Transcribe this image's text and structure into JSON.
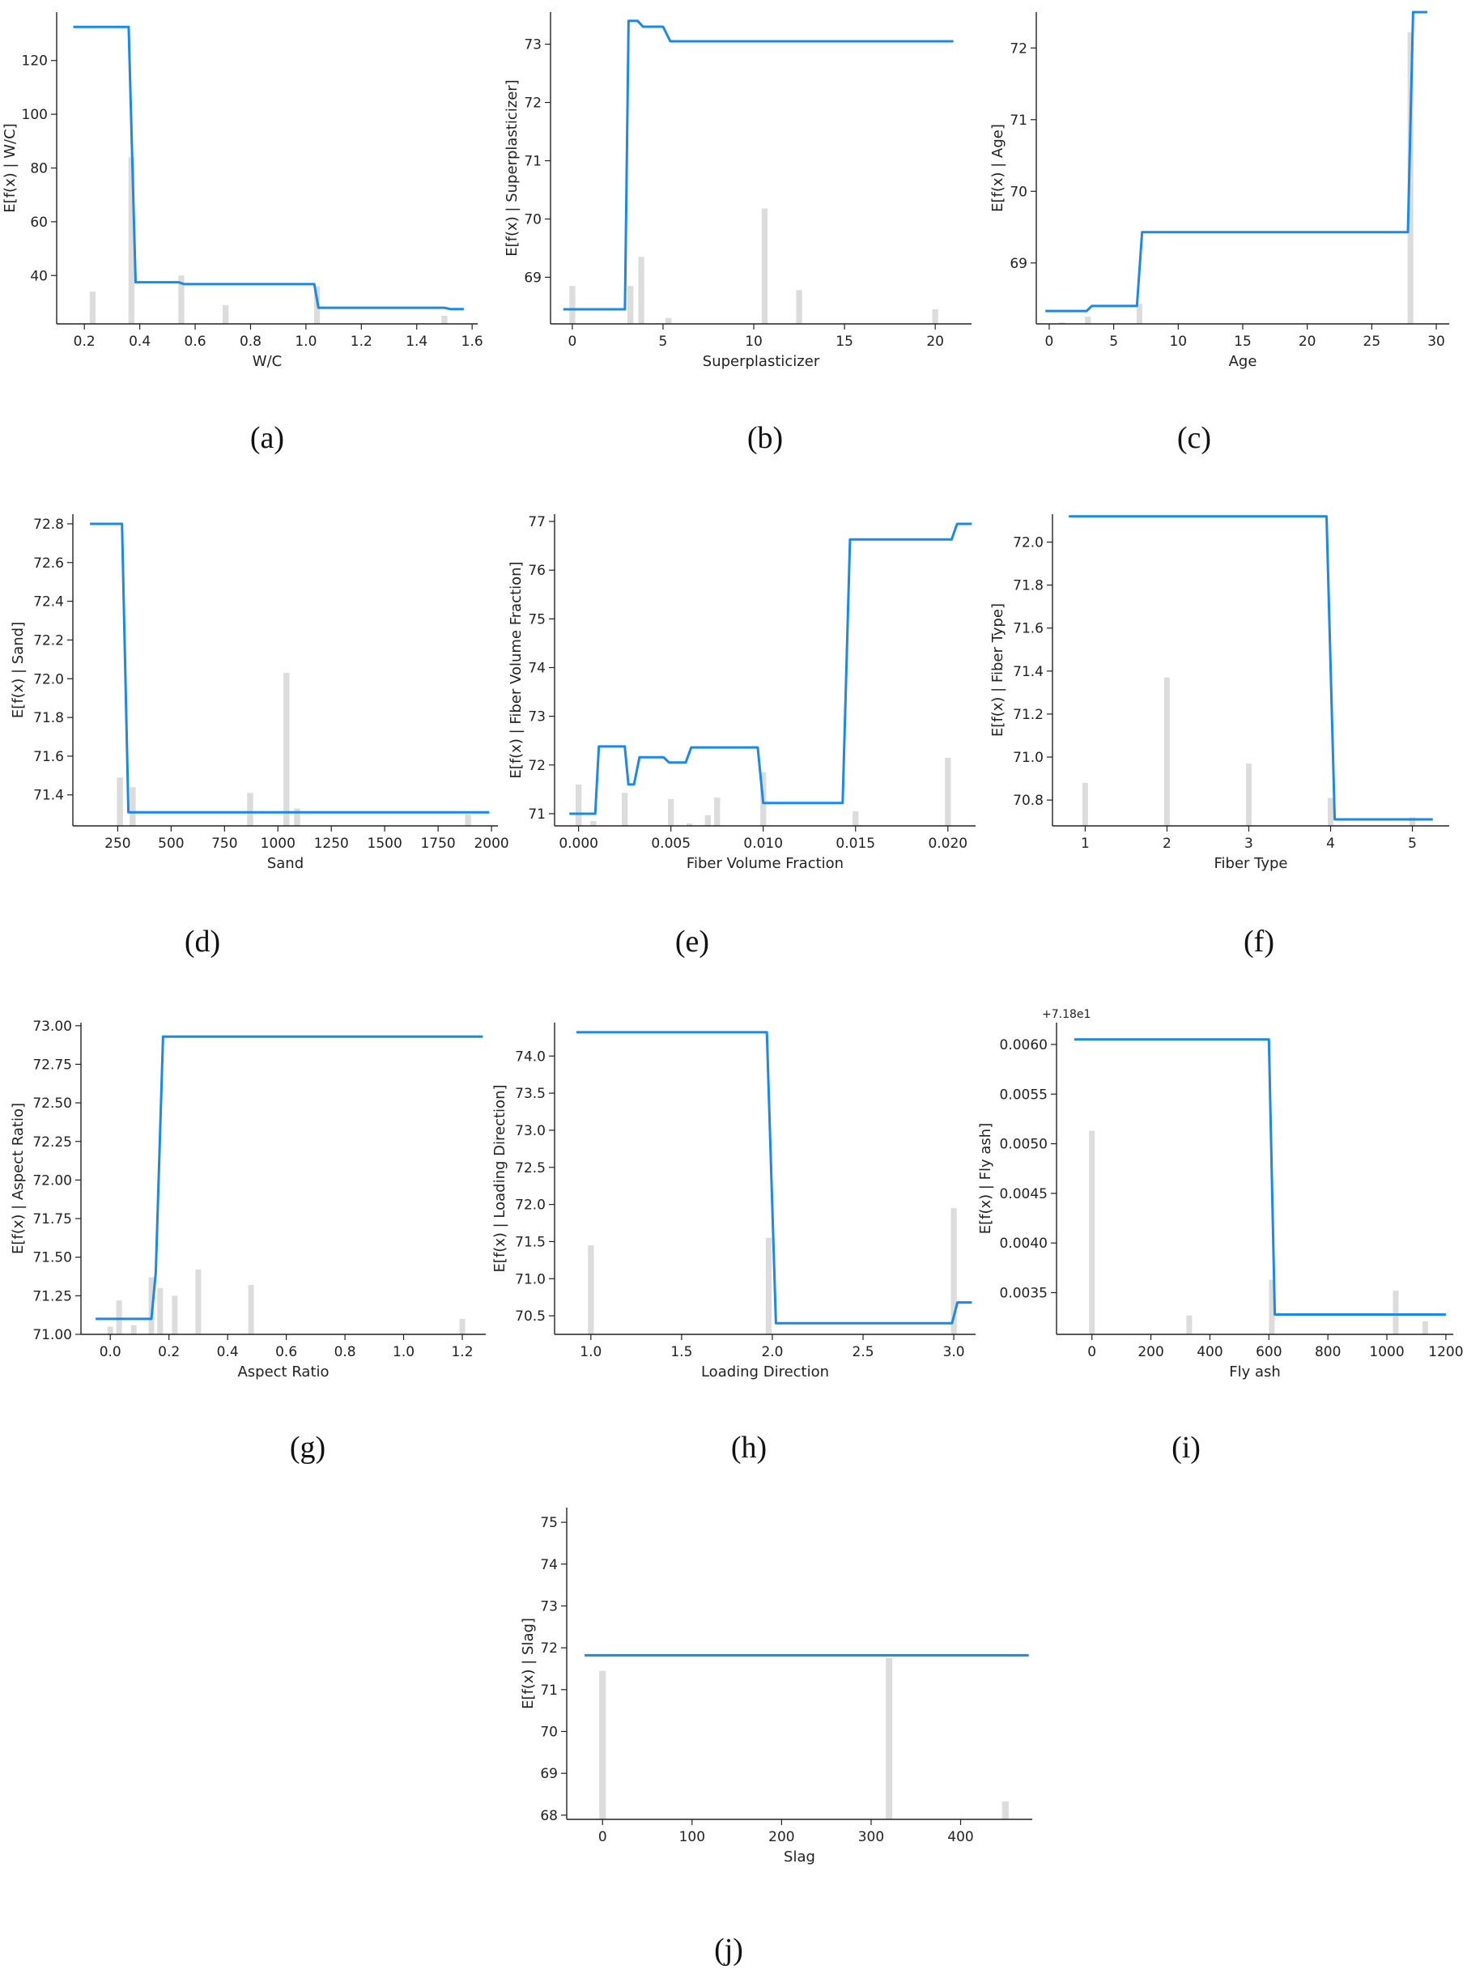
{
  "colors": {
    "line": "#1e88e5",
    "bars": "#dcdcdc",
    "axis": "#222222"
  },
  "chart_data": [
    {
      "type": "line",
      "caption": "(a)",
      "xlabel": "W/C",
      "ylabel": "E[f(x) | W/C]",
      "xlim": [
        0.1,
        1.62
      ],
      "ylim": [
        22,
        138
      ],
      "xticks": [
        0.2,
        0.4,
        0.6,
        0.8,
        1.0,
        1.2,
        1.4,
        1.6
      ],
      "xtick_labels": [
        "0.2",
        "0.4",
        "0.6",
        "0.8",
        "1.0",
        "1.2",
        "1.4",
        "1.6"
      ],
      "yticks": [
        40,
        60,
        80,
        100,
        120
      ],
      "ytick_labels": [
        "40",
        "60",
        "80",
        "100",
        "120"
      ],
      "offset_text": "",
      "line": {
        "x": [
          0.16,
          0.36,
          0.385,
          0.54,
          0.56,
          1.03,
          1.045,
          1.5,
          1.52,
          1.57
        ],
        "y": [
          132.5,
          132.5,
          37.5,
          37.5,
          36.8,
          36.8,
          28,
          28,
          27.5,
          27.5
        ]
      },
      "bars": {
        "x": [
          0.23,
          0.37,
          0.55,
          0.71,
          1.04,
          1.5
        ],
        "height": [
          34,
          84,
          40,
          29,
          36,
          25
        ]
      }
    },
    {
      "type": "line",
      "caption": "(b)",
      "xlabel": "Superplasticizer",
      "ylabel": "E[f(x) | Superplasticizer]",
      "xlim": [
        -1.2,
        22
      ],
      "ylim": [
        68.2,
        73.55
      ],
      "xticks": [
        0,
        5,
        10,
        15,
        20
      ],
      "xtick_labels": [
        "0",
        "5",
        "10",
        "15",
        "20"
      ],
      "yticks": [
        69,
        70,
        71,
        72,
        73
      ],
      "ytick_labels": [
        "69",
        "70",
        "71",
        "72",
        "73"
      ],
      "offset_text": "",
      "line": {
        "x": [
          -0.5,
          2.9,
          3.1,
          3.6,
          3.9,
          5.0,
          5.4,
          21
        ],
        "y": [
          68.45,
          68.45,
          73.4,
          73.4,
          73.3,
          73.3,
          73.05,
          73.05
        ]
      },
      "bars": {
        "x": [
          0,
          3.2,
          3.8,
          5.3,
          10.6,
          12.5,
          20
        ],
        "height": [
          68.85,
          68.85,
          69.35,
          68.3,
          70.18,
          68.78,
          68.45
        ]
      }
    },
    {
      "type": "line",
      "caption": "(c)",
      "xlabel": "Age",
      "ylabel": "E[f(x) | Age]",
      "xlim": [
        -1,
        31
      ],
      "ylim": [
        68.15,
        72.5
      ],
      "xticks": [
        0,
        5,
        10,
        15,
        20,
        25,
        30
      ],
      "xtick_labels": [
        "0",
        "5",
        "10",
        "15",
        "20",
        "25",
        "30"
      ],
      "yticks": [
        69,
        70,
        71,
        72
      ],
      "ytick_labels": [
        "69",
        "70",
        "71",
        "72"
      ],
      "offset_text": "",
      "line": {
        "x": [
          -0.3,
          2.9,
          3.3,
          6.8,
          7.2,
          27.8,
          28.2,
          29.3
        ],
        "y": [
          68.33,
          68.33,
          68.4,
          68.4,
          69.43,
          69.43,
          72.5,
          72.5
        ]
      },
      "bars": {
        "x": [
          1,
          3,
          7,
          28
        ],
        "height": [
          68.17,
          68.25,
          68.43,
          72.22
        ]
      }
    },
    {
      "type": "line",
      "caption": "(d)",
      "xlabel": "Sand",
      "ylabel": "E[f(x) | Sand]",
      "xlim": [
        40,
        2030
      ],
      "ylim": [
        71.24,
        72.85
      ],
      "xticks": [
        250,
        500,
        750,
        1000,
        1250,
        1500,
        1750,
        2000
      ],
      "xtick_labels": [
        "250",
        "500",
        "750",
        "1000",
        "1250",
        "1500",
        "1750",
        "2000"
      ],
      "yticks": [
        71.4,
        71.6,
        71.8,
        72.0,
        72.2,
        72.4,
        72.6,
        72.8
      ],
      "ytick_labels": [
        "71.4",
        "71.6",
        "71.8",
        "72.0",
        "72.2",
        "72.4",
        "72.6",
        "72.8"
      ],
      "offset_text": "",
      "line": {
        "x": [
          120,
          270,
          300,
          1990
        ],
        "y": [
          72.8,
          72.8,
          71.31,
          71.31
        ]
      },
      "bars": {
        "x": [
          260,
          320,
          870,
          1040,
          1090,
          1890
        ],
        "height": [
          71.49,
          71.44,
          71.41,
          72.03,
          71.33,
          71.3
        ]
      }
    },
    {
      "type": "line",
      "caption": "(e)",
      "xlabel": "Fiber Volume Fraction",
      "ylabel": "E[f(x) | Fiber Volume Fraction]",
      "xlim": [
        -0.0013,
        0.0215
      ],
      "ylim": [
        70.75,
        77.15
      ],
      "xticks": [
        0.0,
        0.005,
        0.01,
        0.015,
        0.02
      ],
      "xtick_labels": [
        "0.000",
        "0.005",
        "0.010",
        "0.015",
        "0.020"
      ],
      "yticks": [
        71,
        72,
        73,
        74,
        75,
        76,
        77
      ],
      "ytick_labels": [
        "71",
        "72",
        "73",
        "74",
        "75",
        "76",
        "77"
      ],
      "offset_text": "",
      "line": {
        "x": [
          -0.0005,
          0.0009,
          0.0011,
          0.0025,
          0.0027,
          0.003,
          0.0033,
          0.0046,
          0.0049,
          0.0058,
          0.0061,
          0.0097,
          0.01,
          0.0143,
          0.0147,
          0.0202,
          0.0205,
          0.0213
        ],
        "y": [
          71.0,
          71.0,
          72.38,
          72.38,
          71.6,
          71.6,
          72.16,
          72.16,
          72.05,
          72.05,
          72.36,
          72.36,
          71.22,
          71.22,
          76.63,
          76.63,
          76.95,
          76.95
        ]
      },
      "bars": {
        "x": [
          0.0,
          0.0008,
          0.0025,
          0.005,
          0.006,
          0.007,
          0.0075,
          0.01,
          0.015,
          0.02
        ],
        "height": [
          71.6,
          70.85,
          71.43,
          71.3,
          70.8,
          70.97,
          71.33,
          71.85,
          71.05,
          72.15
        ]
      }
    },
    {
      "type": "line",
      "caption": "(f)",
      "xlabel": "Fiber Type",
      "ylabel": "E[f(x) | Fiber Type]",
      "xlim": [
        0.6,
        5.45
      ],
      "ylim": [
        70.68,
        72.13
      ],
      "xticks": [
        1,
        2,
        3,
        4,
        5
      ],
      "xtick_labels": [
        "1",
        "2",
        "3",
        "4",
        "5"
      ],
      "yticks": [
        70.8,
        71.0,
        71.2,
        71.4,
        71.6,
        71.8,
        72.0
      ],
      "ytick_labels": [
        "70.8",
        "71.0",
        "71.2",
        "71.4",
        "71.6",
        "71.8",
        "72.0"
      ],
      "offset_text": "",
      "line": {
        "x": [
          0.8,
          3.95,
          4.05,
          5.25
        ],
        "y": [
          72.12,
          72.12,
          70.71,
          70.71
        ]
      },
      "bars": {
        "x": [
          1,
          2,
          3,
          4,
          5
        ],
        "height": [
          70.88,
          71.37,
          70.97,
          70.81,
          70.72
        ]
      }
    },
    {
      "type": "line",
      "caption": "(g)",
      "xlabel": "Aspect Ratio",
      "ylabel": "E[f(x) | Aspect Ratio]",
      "xlim": [
        -0.1,
        1.28
      ],
      "ylim": [
        71.0,
        73.02
      ],
      "xticks": [
        0.0,
        0.2,
        0.4,
        0.6,
        0.8,
        1.0,
        1.2
      ],
      "xtick_labels": [
        "0.0",
        "0.2",
        "0.4",
        "0.6",
        "0.8",
        "1.0",
        "1.2"
      ],
      "yticks": [
        71.0,
        71.25,
        71.5,
        71.75,
        72.0,
        72.25,
        72.5,
        72.75,
        73.0
      ],
      "ytick_labels": [
        "71.00",
        "71.25",
        "71.50",
        "71.75",
        "72.00",
        "72.25",
        "72.50",
        "72.75",
        "73.00"
      ],
      "offset_text": "",
      "line": {
        "x": [
          -0.05,
          0.14,
          0.155,
          0.18,
          1.27
        ],
        "y": [
          71.1,
          71.1,
          71.4,
          72.93,
          72.93
        ]
      },
      "bars": {
        "x": [
          0.0,
          0.03,
          0.08,
          0.14,
          0.17,
          0.22,
          0.3,
          0.48,
          1.2
        ],
        "height": [
          71.05,
          71.22,
          71.06,
          71.37,
          71.3,
          71.25,
          71.42,
          71.32,
          71.1
        ]
      }
    },
    {
      "type": "line",
      "caption": "(h)",
      "xlabel": "Loading Direction",
      "ylabel": "E[f(x) | Loading Direction]",
      "xlim": [
        0.8,
        3.12
      ],
      "ylim": [
        70.25,
        74.45
      ],
      "xticks": [
        1.0,
        1.5,
        2.0,
        2.5,
        3.0
      ],
      "xtick_labels": [
        "1.0",
        "1.5",
        "2.0",
        "2.5",
        "3.0"
      ],
      "yticks": [
        70.5,
        71.0,
        71.5,
        72.0,
        72.5,
        73.0,
        73.5,
        74.0
      ],
      "ytick_labels": [
        "70.5",
        "71.0",
        "71.5",
        "72.0",
        "72.5",
        "73.0",
        "73.5",
        "74.0"
      ],
      "offset_text": "",
      "line": {
        "x": [
          0.92,
          1.97,
          2.02,
          2.99,
          3.02,
          3.1
        ],
        "y": [
          74.32,
          74.32,
          70.4,
          70.4,
          70.68,
          70.68
        ]
      },
      "bars": {
        "x": [
          1.0,
          1.98,
          3.0
        ],
        "height": [
          71.45,
          71.55,
          71.95
        ]
      }
    },
    {
      "type": "line",
      "caption": "(i)",
      "xlabel": "Fly ash",
      "ylabel": "E[f(x) | Fly ash]",
      "xlim": [
        -120,
        1225
      ],
      "ylim": [
        0.00308,
        0.00622
      ],
      "xticks": [
        0,
        200,
        400,
        600,
        800,
        1000,
        1200
      ],
      "xtick_labels": [
        "0",
        "200",
        "400",
        "600",
        "800",
        "1000",
        "1200"
      ],
      "yticks": [
        0.0035,
        0.004,
        0.0045,
        0.005,
        0.0055,
        0.006
      ],
      "ytick_labels": [
        "0.0035",
        "0.0040",
        "0.0045",
        "0.0050",
        "0.0055",
        "0.0060"
      ],
      "offset_text": "+7.18e1",
      "line": {
        "x": [
          -60,
          600,
          620,
          1200
        ],
        "y": [
          0.00605,
          0.00605,
          0.00328,
          0.00328
        ]
      },
      "bars": {
        "x": [
          0,
          330,
          610,
          1030,
          1130
        ],
        "height": [
          0.00513,
          0.00327,
          0.00363,
          0.00352,
          0.00321
        ]
      }
    },
    {
      "type": "line",
      "caption": "(j)",
      "xlabel": "Slag",
      "ylabel": "E[f(x) | Slag]",
      "xlim": [
        -40,
        480
      ],
      "ylim": [
        67.9,
        75.35
      ],
      "xticks": [
        0,
        100,
        200,
        300,
        400
      ],
      "xtick_labels": [
        "0",
        "100",
        "200",
        "300",
        "400"
      ],
      "yticks": [
        68,
        69,
        70,
        71,
        72,
        73,
        74,
        75
      ],
      "ytick_labels": [
        "68",
        "69",
        "70",
        "71",
        "72",
        "73",
        "74",
        "75"
      ],
      "offset_text": "",
      "line": {
        "x": [
          -20,
          476
        ],
        "y": [
          71.82,
          71.82
        ]
      },
      "bars": {
        "x": [
          0,
          320,
          450
        ],
        "height": [
          71.45,
          71.75,
          68.33
        ]
      }
    }
  ]
}
